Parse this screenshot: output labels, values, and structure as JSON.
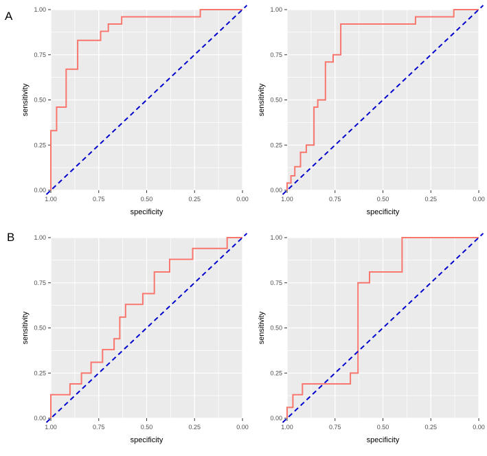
{
  "page": {
    "background": "#ffffff"
  },
  "panel_labels": [
    {
      "id": "A",
      "label": "A"
    },
    {
      "id": "B",
      "label": "B"
    }
  ],
  "style": {
    "panel_bg": "#EBEBEB",
    "grid_color": "#FFFFFF",
    "tick_color": "#4D4D4D",
    "tick_mark_color": "#333333",
    "title_color": "#000000",
    "roc_color": "#F8766D",
    "diag_color": "#0000CD"
  },
  "chart_data": [
    {
      "type": "line",
      "panel": "A-left",
      "title": "",
      "xlabel": "specificity",
      "ylabel": "sensitivity",
      "x_reversed": true,
      "xlim": [
        1.0,
        0.0
      ],
      "ylim": [
        0.0,
        1.0
      ],
      "x_ticks": [
        "1.00",
        "0.75",
        "0.50",
        "0.25",
        "0.00"
      ],
      "y_ticks": [
        "0.00",
        "0.25",
        "0.50",
        "0.75",
        "1.00"
      ],
      "grid": true,
      "legend": "none",
      "series": [
        {
          "name": "roc-curve",
          "color": "#F8766D",
          "dashed": false,
          "points": [
            [
              1.0,
              0.0
            ],
            [
              1.0,
              0.33
            ],
            [
              0.97,
              0.33
            ],
            [
              0.97,
              0.46
            ],
            [
              0.92,
              0.46
            ],
            [
              0.92,
              0.67
            ],
            [
              0.86,
              0.67
            ],
            [
              0.86,
              0.83
            ],
            [
              0.74,
              0.83
            ],
            [
              0.74,
              0.88
            ],
            [
              0.7,
              0.88
            ],
            [
              0.7,
              0.92
            ],
            [
              0.63,
              0.92
            ],
            [
              0.63,
              0.96
            ],
            [
              0.22,
              0.96
            ],
            [
              0.22,
              1.0
            ],
            [
              0.0,
              1.0
            ]
          ]
        },
        {
          "name": "chance-diagonal",
          "color": "#0000CD",
          "dashed": true,
          "points": [
            [
              1.0,
              0.0
            ],
            [
              0.0,
              1.0
            ]
          ]
        }
      ]
    },
    {
      "type": "line",
      "panel": "A-right",
      "title": "",
      "xlabel": "specificity",
      "ylabel": "sensitivity",
      "x_reversed": true,
      "xlim": [
        1.0,
        0.0
      ],
      "ylim": [
        0.0,
        1.0
      ],
      "x_ticks": [
        "1.00",
        "0.75",
        "0.50",
        "0.25",
        "0.00"
      ],
      "y_ticks": [
        "0.00",
        "0.25",
        "0.50",
        "0.75",
        "1.00"
      ],
      "grid": true,
      "legend": "none",
      "series": [
        {
          "name": "roc-curve",
          "color": "#F8766D",
          "dashed": false,
          "points": [
            [
              1.0,
              0.0
            ],
            [
              1.0,
              0.04
            ],
            [
              0.98,
              0.04
            ],
            [
              0.98,
              0.08
            ],
            [
              0.96,
              0.08
            ],
            [
              0.96,
              0.13
            ],
            [
              0.93,
              0.13
            ],
            [
              0.93,
              0.21
            ],
            [
              0.9,
              0.21
            ],
            [
              0.9,
              0.25
            ],
            [
              0.86,
              0.25
            ],
            [
              0.86,
              0.46
            ],
            [
              0.84,
              0.46
            ],
            [
              0.84,
              0.5
            ],
            [
              0.8,
              0.5
            ],
            [
              0.8,
              0.71
            ],
            [
              0.76,
              0.71
            ],
            [
              0.76,
              0.75
            ],
            [
              0.72,
              0.75
            ],
            [
              0.72,
              0.92
            ],
            [
              0.33,
              0.92
            ],
            [
              0.33,
              0.96
            ],
            [
              0.13,
              0.96
            ],
            [
              0.13,
              1.0
            ],
            [
              0.0,
              1.0
            ]
          ]
        },
        {
          "name": "chance-diagonal",
          "color": "#0000CD",
          "dashed": true,
          "points": [
            [
              1.0,
              0.0
            ],
            [
              0.0,
              1.0
            ]
          ]
        }
      ]
    },
    {
      "type": "line",
      "panel": "B-left",
      "title": "",
      "xlabel": "specificity",
      "ylabel": "sensitivity",
      "x_reversed": true,
      "xlim": [
        1.0,
        0.0
      ],
      "ylim": [
        0.0,
        1.0
      ],
      "x_ticks": [
        "1.00",
        "0.75",
        "0.50",
        "0.25",
        "0.00"
      ],
      "y_ticks": [
        "0.00",
        "0.25",
        "0.50",
        "0.75",
        "1.00"
      ],
      "grid": true,
      "legend": "none",
      "series": [
        {
          "name": "roc-curve",
          "color": "#F8766D",
          "dashed": false,
          "points": [
            [
              1.0,
              0.0
            ],
            [
              1.0,
              0.13
            ],
            [
              0.9,
              0.13
            ],
            [
              0.9,
              0.19
            ],
            [
              0.84,
              0.19
            ],
            [
              0.84,
              0.25
            ],
            [
              0.79,
              0.25
            ],
            [
              0.79,
              0.31
            ],
            [
              0.73,
              0.31
            ],
            [
              0.73,
              0.38
            ],
            [
              0.67,
              0.38
            ],
            [
              0.67,
              0.44
            ],
            [
              0.64,
              0.44
            ],
            [
              0.64,
              0.56
            ],
            [
              0.61,
              0.56
            ],
            [
              0.61,
              0.63
            ],
            [
              0.52,
              0.63
            ],
            [
              0.52,
              0.69
            ],
            [
              0.46,
              0.69
            ],
            [
              0.46,
              0.81
            ],
            [
              0.38,
              0.81
            ],
            [
              0.38,
              0.88
            ],
            [
              0.26,
              0.88
            ],
            [
              0.26,
              0.94
            ],
            [
              0.08,
              0.94
            ],
            [
              0.08,
              1.0
            ],
            [
              0.0,
              1.0
            ]
          ]
        },
        {
          "name": "chance-diagonal",
          "color": "#0000CD",
          "dashed": true,
          "points": [
            [
              1.0,
              0.0
            ],
            [
              0.0,
              1.0
            ]
          ]
        }
      ]
    },
    {
      "type": "line",
      "panel": "B-right",
      "title": "",
      "xlabel": "specificity",
      "ylabel": "sensitivity",
      "x_reversed": true,
      "xlim": [
        1.0,
        0.0
      ],
      "ylim": [
        0.0,
        1.0
      ],
      "x_ticks": [
        "1.00",
        "0.75",
        "0.50",
        "0.25",
        "0.00"
      ],
      "y_ticks": [
        "0.00",
        "0.25",
        "0.50",
        "0.75",
        "1.00"
      ],
      "grid": true,
      "legend": "none",
      "series": [
        {
          "name": "roc-curve",
          "color": "#F8766D",
          "dashed": false,
          "points": [
            [
              1.0,
              0.0
            ],
            [
              1.0,
              0.06
            ],
            [
              0.97,
              0.06
            ],
            [
              0.97,
              0.13
            ],
            [
              0.92,
              0.13
            ],
            [
              0.92,
              0.19
            ],
            [
              0.67,
              0.19
            ],
            [
              0.67,
              0.25
            ],
            [
              0.63,
              0.25
            ],
            [
              0.63,
              0.75
            ],
            [
              0.57,
              0.75
            ],
            [
              0.57,
              0.81
            ],
            [
              0.4,
              0.81
            ],
            [
              0.4,
              1.0
            ],
            [
              0.0,
              1.0
            ]
          ]
        },
        {
          "name": "chance-diagonal",
          "color": "#0000CD",
          "dashed": true,
          "points": [
            [
              1.0,
              0.0
            ],
            [
              0.0,
              1.0
            ]
          ]
        }
      ]
    }
  ]
}
